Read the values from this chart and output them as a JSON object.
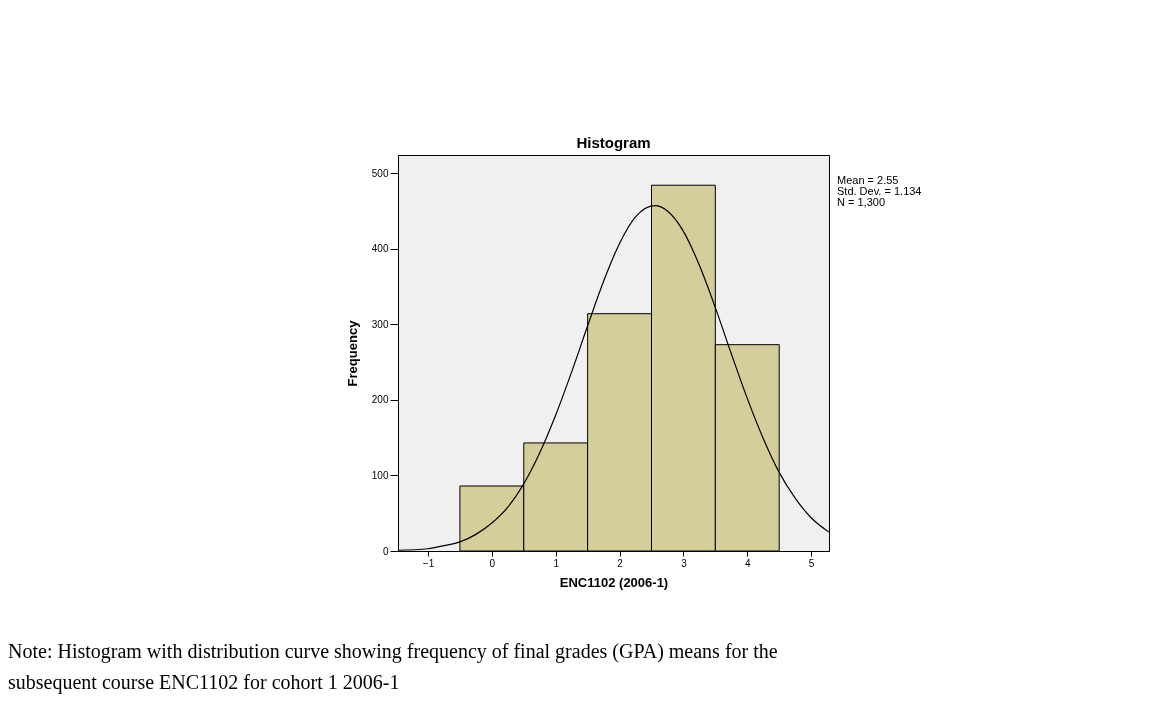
{
  "chart_data": {
    "type": "histogram",
    "title": "Histogram",
    "xlabel": "ENC1102 (2006-1)",
    "ylabel": "Frequency",
    "bins": [
      -0.5,
      0.5,
      1.5,
      2.5,
      3.5,
      4.5
    ],
    "values": [
      86,
      143,
      314,
      484,
      273
    ],
    "color": "#d3ce9a",
    "series": [
      {
        "type": "line",
        "color": "#000000",
        "x": [
          -1.47,
          -1,
          -0.75,
          -0.5,
          -0.25,
          0,
          0.25,
          0.5,
          0.75,
          1,
          1.25,
          1.5,
          1.75,
          2,
          2.25,
          2.55,
          2.75,
          3,
          3.25,
          3.5,
          3.75,
          4,
          4.25,
          4.5,
          4.75,
          5,
          5.28
        ],
        "values": [
          1,
          3,
          7,
          12,
          22,
          37,
          58,
          89,
          130,
          180,
          237,
          298,
          357,
          407,
          442,
          457,
          450,
          423,
          378,
          322,
          261,
          202,
          149,
          104,
          70,
          44,
          25
        ]
      }
    ],
    "xlim": [
      -1.47,
      5.28
    ],
    "ylim": [
      0,
      524
    ],
    "xticks": [
      -1,
      0,
      1,
      2,
      3,
      4,
      5
    ],
    "yticks": [
      0,
      100,
      200,
      300,
      400,
      500
    ],
    "grid": false,
    "annotations": [
      "Mean = 2.55",
      "Std. Dev. = 1.134",
      "N = 1,300",
      "Note: Histogram with distribution curve showing frequency of final grades (GPA) means for the subsequent course ENC1102 for cohort 1 2006-1"
    ]
  }
}
